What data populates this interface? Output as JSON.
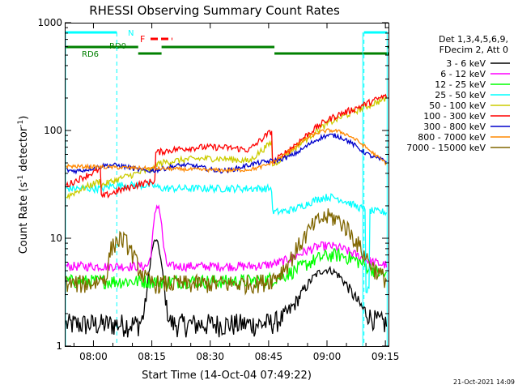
{
  "chart_data": {
    "type": "line",
    "title": "RHESSI Observing Summary Count Rates",
    "xlabel": "Start Time (14-Oct-04 07:49:22)",
    "ylabel_main": "Count Rate (s",
    "ylabel_sup1": "-1",
    "ylabel_mid": " detector",
    "ylabel_sup2": "-1",
    "ylabel_end": ")",
    "yscale": "log",
    "ylim": [
      1,
      1000
    ],
    "xlim_minutes": [
      -7.37,
      75.8
    ],
    "x_ticks": [
      {
        "m": 0,
        "label": "08:00"
      },
      {
        "m": 15,
        "label": "08:15"
      },
      {
        "m": 30,
        "label": "08:30"
      },
      {
        "m": 45,
        "label": "08:45"
      },
      {
        "m": 60,
        "label": "09:00"
      },
      {
        "m": 75,
        "label": "09:15"
      }
    ],
    "y_ticks": [
      {
        "v": 1,
        "label": "1"
      },
      {
        "v": 10,
        "label": "10"
      },
      {
        "v": 100,
        "label": "100"
      },
      {
        "v": 1000,
        "label": "1000"
      }
    ],
    "legend_header": [
      "Det 1,3,4,5,6,9,",
      "FDecim 2, Att 0"
    ],
    "legend_position": "right",
    "series": [
      {
        "name": "3 - 6 keV",
        "color": "#000000"
      },
      {
        "name": "6 - 12 keV",
        "color": "#ff00ff"
      },
      {
        "name": "12 - 25 keV",
        "color": "#00ff00"
      },
      {
        "name": "25 - 50 keV",
        "color": "#00ffff"
      },
      {
        "name": "50 - 100 keV",
        "color": "#cccc00"
      },
      {
        "name": "100 - 300 keV",
        "color": "#ff0000"
      },
      {
        "name": "300 - 800 keV",
        "color": "#0000cc"
      },
      {
        "name": "800 - 7000 keV",
        "color": "#ff8800"
      },
      {
        "name": "7000 - 15000 keV",
        "color": "#806600"
      }
    ],
    "annotations": {
      "night_label": "N",
      "flare_label": "F",
      "rd0_label": "RD0",
      "rd6_label": "RD6"
    },
    "timestamp": "21-Oct-2021 14:09"
  }
}
